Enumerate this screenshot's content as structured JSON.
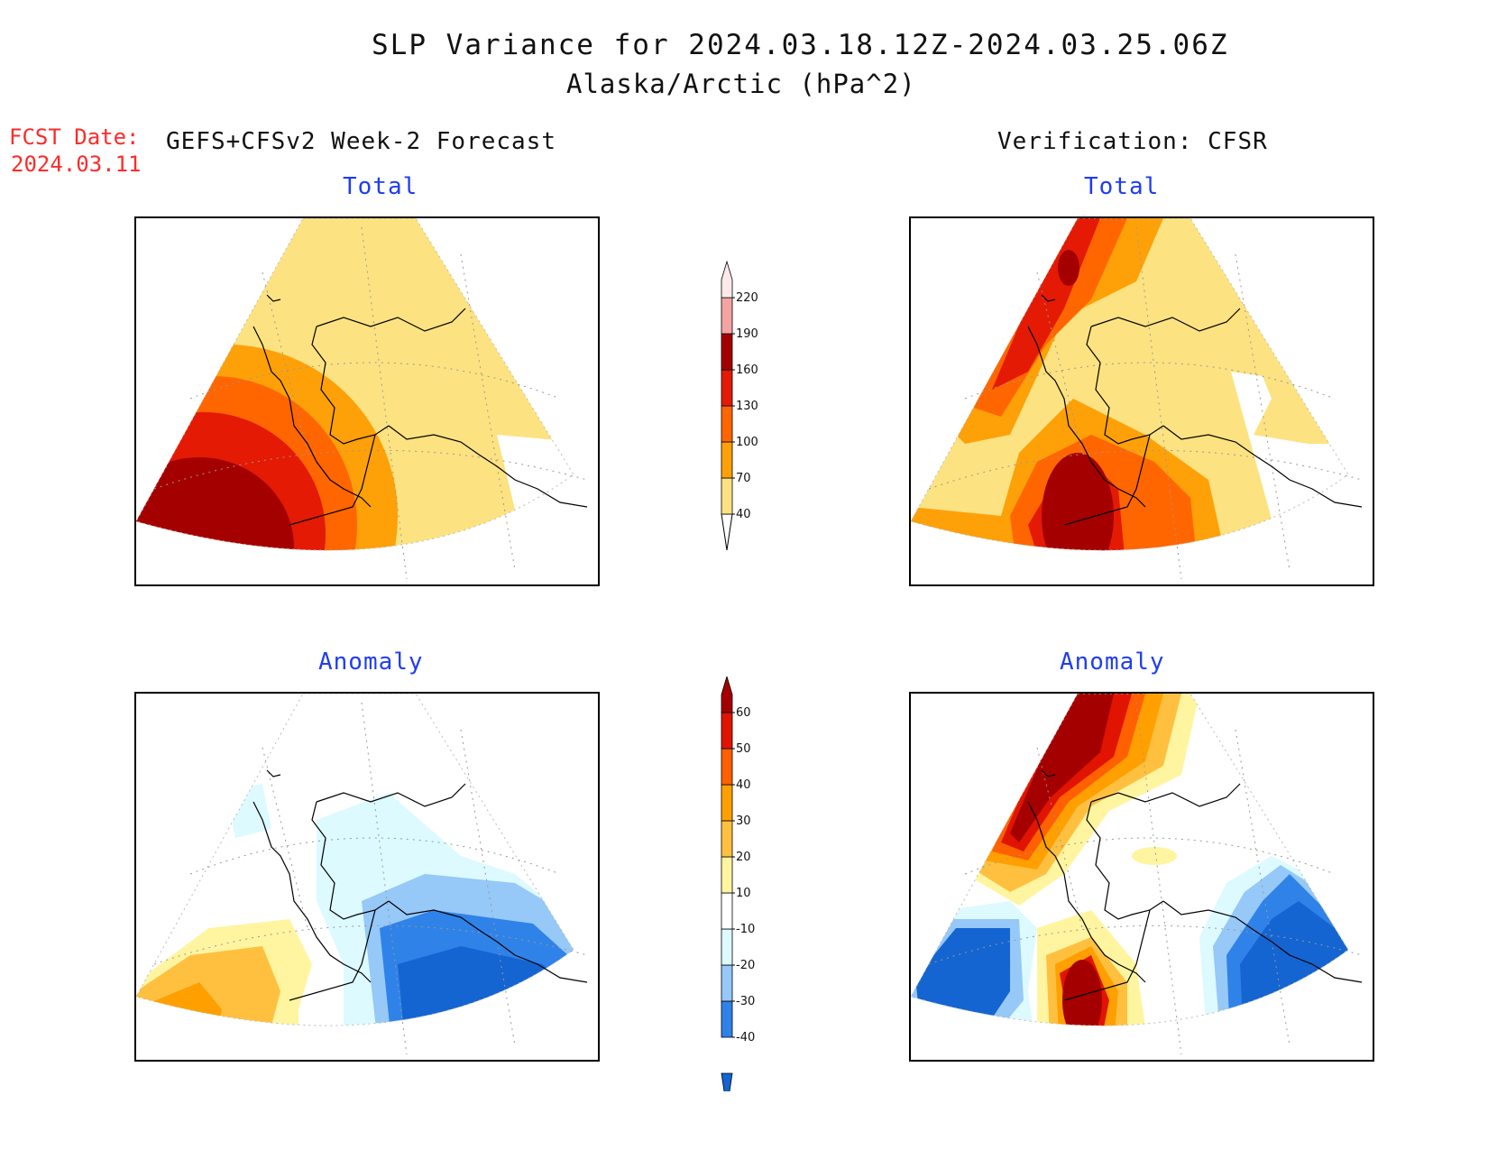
{
  "header": {
    "title": "SLP Variance for 2024.03.18.12Z-2024.03.25.06Z",
    "subtitle": "Alaska/Arctic (hPa^2)",
    "fcst_label": "FCST Date:",
    "fcst_date": "2024.03.11",
    "forecast_label": "GEFS+CFSv2 Week-2 Forecast",
    "verification_label": "Verification: CFSR"
  },
  "panels": {
    "fcst_total": {
      "title": "Total"
    },
    "verif_total": {
      "title": "Total"
    },
    "fcst_anom": {
      "title": "Anomaly"
    },
    "verif_anom": {
      "title": "Anomaly"
    }
  },
  "colorbars": {
    "total": {
      "labels": [
        "40",
        "70",
        "100",
        "130",
        "160",
        "190",
        "220"
      ],
      "colors": [
        "#fde281",
        "#fea008",
        "#ff6600",
        "#e41a05",
        "#a50000",
        "#f4a3a3",
        "#fde9e9"
      ]
    },
    "anomaly": {
      "labels": [
        "-40",
        "-30",
        "-20",
        "-10",
        "10",
        "20",
        "30",
        "40",
        "50",
        "60"
      ],
      "colors": [
        "#1464d2",
        "#2f82e8",
        "#96c8f8",
        "#dcfaff",
        "#ffffff",
        "#fff5a0",
        "#ffc040",
        "#ffa000",
        "#ff6000",
        "#e01400",
        "#a50000"
      ]
    }
  },
  "colors": {
    "title_blue": "#1f3df2",
    "fcst_red": "#ff2a2a"
  }
}
